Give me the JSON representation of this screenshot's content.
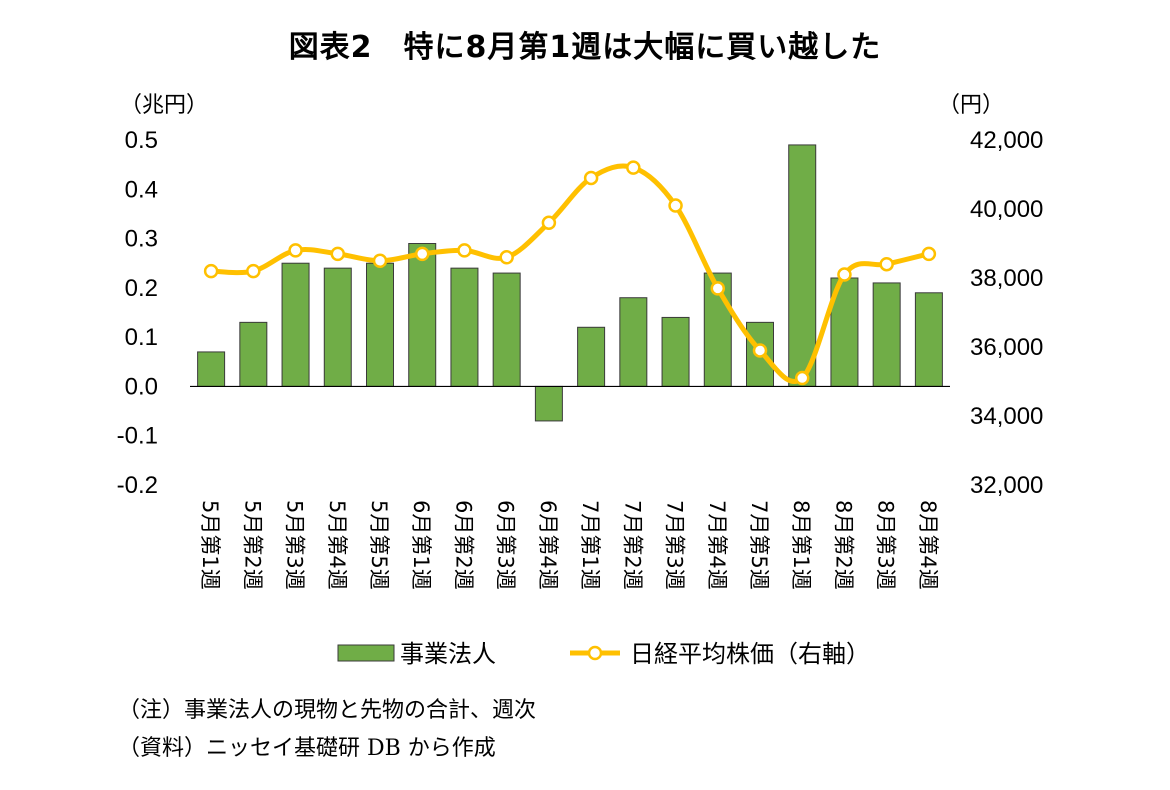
{
  "title": "図表2　特に8月第1週は大幅に買い越した",
  "notes": {
    "note": "（注）事業法人の現物と先物の合計、週次",
    "source": "（資料）ニッセイ基礎研 DB から作成"
  },
  "chart_data": {
    "type": "bar",
    "title": "図表2　特に8月第1週は大幅に買い越した",
    "categories": [
      "5月第1週",
      "5月第2週",
      "5月第3週",
      "5月第4週",
      "5月第5週",
      "6月第1週",
      "6月第2週",
      "6月第3週",
      "6月第4週",
      "7月第1週",
      "7月第2週",
      "7月第3週",
      "7月第4週",
      "7月第5週",
      "8月第1週",
      "8月第2週",
      "8月第3週",
      "8月第4週"
    ],
    "left_axis": {
      "unit_label": "（兆円）",
      "min": -0.2,
      "max": 0.5,
      "ticks": [
        "0.5",
        "0.4",
        "0.3",
        "0.2",
        "0.1",
        "0.0",
        "-0.1",
        "-0.2"
      ],
      "tick_values": [
        0.5,
        0.4,
        0.3,
        0.2,
        0.1,
        0.0,
        -0.1,
        -0.2
      ]
    },
    "right_axis": {
      "unit_label": "（円）",
      "min": 32000,
      "max": 42000,
      "ticks": [
        "42,000",
        "40,000",
        "38,000",
        "36,000",
        "34,000",
        "32,000"
      ],
      "tick_values": [
        42000,
        40000,
        38000,
        36000,
        34000,
        32000
      ]
    },
    "series": [
      {
        "name": "事業法人",
        "type": "bar",
        "axis": "left",
        "color": "#70ad47",
        "values": [
          0.07,
          0.13,
          0.25,
          0.24,
          0.25,
          0.29,
          0.24,
          0.23,
          -0.07,
          0.12,
          0.18,
          0.14,
          0.23,
          0.13,
          0.49,
          0.22,
          0.21,
          0.19
        ]
      },
      {
        "name": "日経平均株価（右軸）",
        "type": "line",
        "axis": "right",
        "color": "#ffc000",
        "values": [
          38200,
          38200,
          38800,
          38700,
          38500,
          38700,
          38800,
          38600,
          39600,
          40900,
          41200,
          40100,
          37700,
          35900,
          35100,
          38100,
          38400,
          38700
        ]
      }
    ],
    "legend": "bottom",
    "grid": false
  }
}
